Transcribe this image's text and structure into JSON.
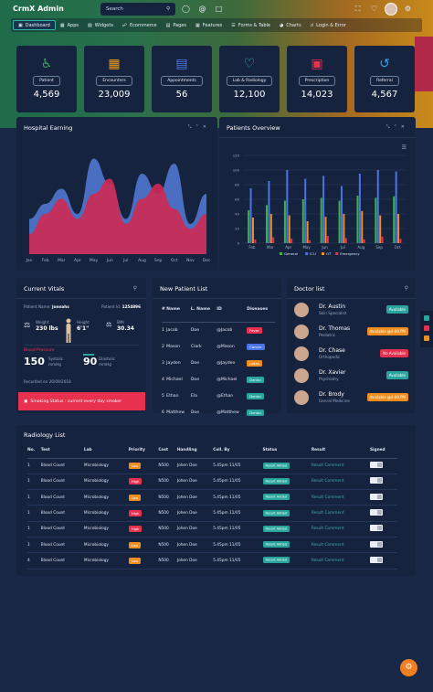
{
  "app": {
    "brand": "CrmX Admin",
    "search_placeholder": "Search"
  },
  "topbar_icons": [
    "chat-icon",
    "at-icon",
    "clipboard-icon",
    "fullscreen-icon",
    "bell-icon",
    "settings-icon"
  ],
  "nav": [
    {
      "label": "Dashboard",
      "active": true
    },
    {
      "label": "Apps"
    },
    {
      "label": "Widgets"
    },
    {
      "label": "Ecommerce"
    },
    {
      "label": "Pages"
    },
    {
      "label": "Features"
    },
    {
      "label": "Forms & Table"
    },
    {
      "label": "Charts"
    },
    {
      "label": "Login & Error"
    }
  ],
  "stats": [
    {
      "label": "Patient",
      "value": "4,569",
      "color": "#2ea84f",
      "icon": "wheelchair-icon"
    },
    {
      "label": "Encounters",
      "value": "23,009",
      "color": "#f29b1c",
      "icon": "document-icon"
    },
    {
      "label": "Appointments",
      "value": "56",
      "color": "#4a7ae8",
      "icon": "calendar-icon"
    },
    {
      "label": "Lab & Radiology",
      "value": "12,100",
      "color": "#35b9a8",
      "icon": "heartbeat-icon"
    },
    {
      "label": "Prescription",
      "value": "14,023",
      "color": "#e8304f",
      "icon": "prescription-icon"
    },
    {
      "label": "Referral",
      "value": "4,567",
      "color": "#3aa2e3",
      "icon": "share-icon"
    }
  ],
  "hospital_earning": {
    "title": "Hospital Earning",
    "chart_data": {
      "type": "area",
      "x": [
        "Jan",
        "Feb",
        "Mar",
        "Apr",
        "May",
        "Jun",
        "Jul",
        "Aug",
        "Sep",
        "Oct",
        "Nov",
        "Dec"
      ],
      "series": [
        {
          "values": [
            35,
            50,
            65,
            40,
            95,
            70,
            35,
            80,
            60,
            90,
            30,
            60
          ],
          "color": "#4d74c9"
        },
        {
          "values": [
            20,
            40,
            55,
            35,
            60,
            75,
            30,
            55,
            70,
            45,
            25,
            40
          ],
          "color": "#cf2a52"
        }
      ],
      "grid": false
    }
  },
  "patients_overview": {
    "title": "Patients Overview",
    "chart_data": {
      "type": "bar",
      "categories": [
        "Feb",
        "Mar",
        "Apr",
        "May",
        "Jun",
        "Jul",
        "Aug",
        "Sep",
        "Oct"
      ],
      "ylim": [
        0,
        120
      ],
      "yticks": [
        "0",
        "20",
        "40",
        "60",
        "80",
        "100",
        "120"
      ],
      "series": [
        {
          "name": "General",
          "color": "#39b54a",
          "values": [
            45,
            52,
            58,
            60,
            62,
            58,
            65,
            62,
            64
          ]
        },
        {
          "name": "ICU",
          "color": "#4a74e6",
          "values": [
            75,
            85,
            100,
            88,
            92,
            78,
            95,
            100,
            98
          ]
        },
        {
          "name": "OT",
          "color": "#f08f1f",
          "values": [
            35,
            40,
            38,
            30,
            36,
            40,
            44,
            38,
            40
          ]
        },
        {
          "name": "Emergency",
          "color": "#e8304f",
          "values": [
            5,
            8,
            6,
            4,
            10,
            7,
            5,
            9,
            6
          ]
        }
      ],
      "legend": "bottom"
    }
  },
  "vitals": {
    "title": "Current Vitals",
    "patient_name_label": "Patient Name:",
    "patient_name": "Jonnahs",
    "patient_id_label": "Patient Id:",
    "patient_id": "1254896",
    "weight_label": "Weight",
    "weight": "230 lbs",
    "height_label": "Height",
    "height": "6'1\"",
    "bmi_label": "BMI",
    "bmi": "30.34",
    "bp_label": "Blood Pressure",
    "systolic": "150",
    "systolic_label": "Systolic mmHg",
    "diastolic": "90",
    "diastolic_label": "Diastolic mmHg",
    "recorded": "Recorded on 26/09/2018",
    "smoking": "Smoking Status : current every day smoker"
  },
  "new_patients": {
    "title": "New Patient List",
    "headers": [
      "#",
      "Name",
      "L. Name",
      "ID",
      "Diseases"
    ],
    "rows": [
      {
        "n": "1",
        "name": "Jacob",
        "lname": "Doe",
        "id": "@Jacob",
        "disease": "Fever",
        "color": "#e8304f"
      },
      {
        "n": "2",
        "name": "Mason",
        "lname": "Clark",
        "id": "@Mason",
        "disease": "Cancer",
        "color": "#4a74e6"
      },
      {
        "n": "3",
        "name": "Jayden",
        "lname": "Doe",
        "id": "@Jayden",
        "disease": "Lokas",
        "color": "#f08f1f"
      },
      {
        "n": "4",
        "name": "Michael",
        "lname": "Doe",
        "id": "@Michael",
        "disease": "Dental",
        "color": "#2aa59d"
      },
      {
        "n": "5",
        "name": "Ethan",
        "lname": "Ela",
        "id": "@Ethan",
        "disease": "Dental",
        "color": "#2aa59d"
      },
      {
        "n": "6",
        "name": "Matthew",
        "lname": "Doe",
        "id": "@Matthew",
        "disease": "Dental",
        "color": "#2aa59d"
      }
    ]
  },
  "doctors": {
    "title": "Doctor list",
    "rows": [
      {
        "name": "Dr. Austin",
        "spec": "Skin Specialist",
        "status": "Available",
        "color": "#2aa59d"
      },
      {
        "name": "Dr. Thomas",
        "spec": "Pediatric",
        "status": "Available @4:00 PM",
        "color": "#f08f1f"
      },
      {
        "name": "Dr. Chase",
        "spec": "Orthopedic",
        "status": "No Available",
        "color": "#e8304f"
      },
      {
        "name": "Dr. Xavier",
        "spec": "Psychiatry",
        "status": "Available",
        "color": "#2aa59d"
      },
      {
        "name": "Dr. Brody",
        "spec": "Genral Medicine",
        "status": "Available @4:00 PM",
        "color": "#f08f1f"
      }
    ]
  },
  "radiology": {
    "title": "Radiology List",
    "headers": [
      "No.",
      "Test",
      "Lab",
      "Priority",
      "Cost",
      "Handling",
      "Coll. By",
      "Status",
      "Result",
      "Signed"
    ],
    "rows": [
      {
        "no": "1",
        "test": "Blood Count",
        "lab": "Microbiology",
        "priority": "Low",
        "pcolor": "#f08f1f",
        "cost": "N500",
        "handling": "Johen Doe",
        "coll": "5.45pm 11/05",
        "status": "Result Added",
        "result": "Result Comment"
      },
      {
        "no": "1",
        "test": "Blood Count",
        "lab": "Microbiology",
        "priority": "High",
        "pcolor": "#e8304f",
        "cost": "N500",
        "handling": "Johen Doe",
        "coll": "5.45pm 11/05",
        "status": "Result Added",
        "result": "Result Comment"
      },
      {
        "no": "1",
        "test": "Blood Count",
        "lab": "Microbiology",
        "priority": "Low",
        "pcolor": "#f08f1f",
        "cost": "N500",
        "handling": "Johen Doe",
        "coll": "5.45pm 11/05",
        "status": "Result Added",
        "result": "Result Comment"
      },
      {
        "no": "1",
        "test": "Blood Count",
        "lab": "Microbiology",
        "priority": "High",
        "pcolor": "#e8304f",
        "cost": "N500",
        "handling": "Johen Doe",
        "coll": "5.45pm 11/05",
        "status": "Result Added",
        "result": "Result Comment"
      },
      {
        "no": "1",
        "test": "Blood Count",
        "lab": "Microbiology",
        "priority": "High",
        "pcolor": "#e8304f",
        "cost": "N500",
        "handling": "Johen Doe",
        "coll": "5.45pm 11/05",
        "status": "Result Added",
        "result": "Result Comment"
      },
      {
        "no": "1",
        "test": "Blood Count",
        "lab": "Microbiology",
        "priority": "Low",
        "pcolor": "#f08f1f",
        "cost": "N500",
        "handling": "Johen Doe",
        "coll": "5.45pm 11/05",
        "status": "Result Added",
        "result": "Result Comment"
      },
      {
        "no": "4",
        "test": "Blood Count",
        "lab": "Microbiology",
        "priority": "Low",
        "pcolor": "#f08f1f",
        "cost": "N500",
        "handling": "Johen Doe",
        "coll": "5.45pm 11/05",
        "status": "Result Added",
        "result": "Result Comment"
      }
    ]
  }
}
